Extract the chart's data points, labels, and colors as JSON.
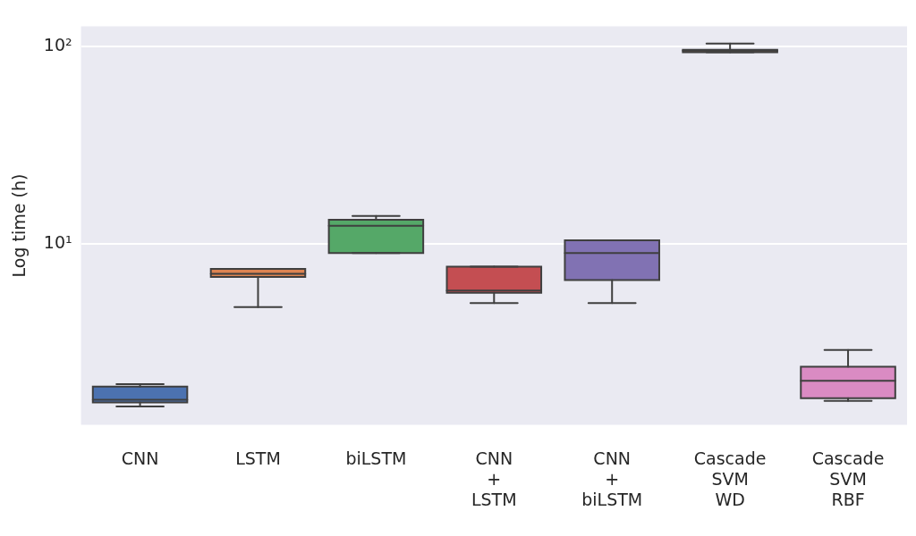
{
  "chart_data": {
    "type": "box",
    "ylabel": "Log time (h)",
    "categories": [
      "CNN",
      "LSTM",
      "biLSTM",
      "CNN\n+\nLSTM",
      "CNN\n+\nbiLSTM",
      "Cascade\nSVM\nWD",
      "Cascade\nSVM\nRBF"
    ],
    "colors": [
      "#4c72b0",
      "#dd8452",
      "#55a868",
      "#c44e52",
      "#8172b3",
      "#937860",
      "#da8bc3"
    ],
    "boxes": [
      {
        "low": 1.49,
        "q1": 1.56,
        "median": 1.61,
        "q3": 1.88,
        "high": 1.93
      },
      {
        "low": 4.76,
        "q1": 6.77,
        "median": 7.03,
        "q3": 7.43,
        "high": 7.43
      },
      {
        "low": 8.95,
        "q1": 8.95,
        "median": 12.3,
        "q3": 13.2,
        "high": 13.8
      },
      {
        "low": 4.99,
        "q1": 5.62,
        "median": 5.78,
        "q3": 7.64,
        "high": 7.64
      },
      {
        "low": 4.99,
        "q1": 6.53,
        "median": 8.95,
        "q3": 10.4,
        "high": 10.4
      },
      {
        "low": 93.8,
        "q1": 93.8,
        "median": 95.5,
        "q3": 96.4,
        "high": 103.8
      },
      {
        "low": 1.59,
        "q1": 1.64,
        "median": 2.01,
        "q3": 2.37,
        "high": 2.88
      }
    ],
    "log": true,
    "ylim": [
      1.2,
      127
    ],
    "yticks": [
      {
        "value": 10,
        "label": "10¹"
      },
      {
        "value": 100,
        "label": "10²"
      }
    ],
    "grid": "y"
  }
}
